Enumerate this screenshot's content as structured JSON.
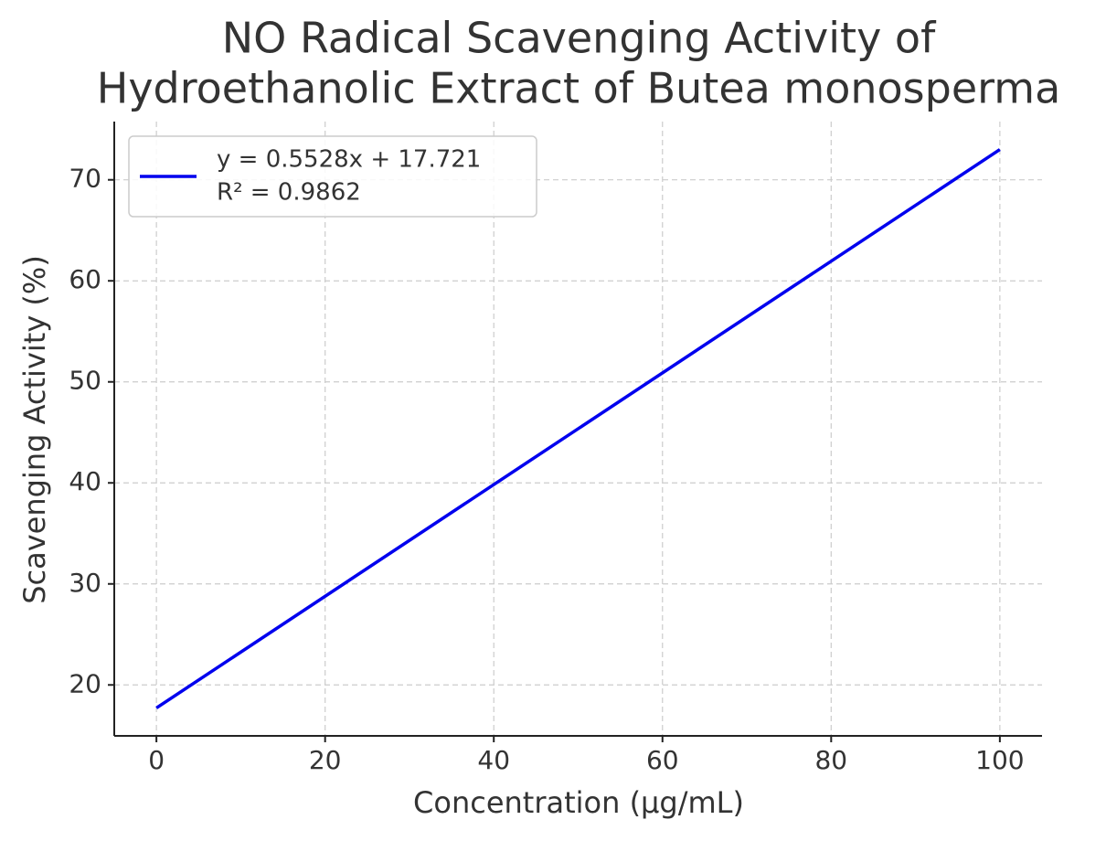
{
  "chart_data": {
    "type": "line",
    "title": [
      "NO Radical Scavenging Activity of",
      "Hydroethanolic Extract of Butea monosperma"
    ],
    "x_label": "Concentration (µg/mL)",
    "y_label": "Scavenging Activity (%)",
    "x": [
      0,
      100
    ],
    "series": [
      {
        "name": "y = 0.5528x + 17.721",
        "color": "#0000ee",
        "values": [
          17.721,
          73.001
        ]
      }
    ],
    "legend_note": "R² = 0.9862",
    "xlim": [
      -5,
      105
    ],
    "ylim": [
      14.957,
      75.765
    ],
    "xticks": [
      0,
      20,
      40,
      60,
      80,
      100
    ],
    "yticks": [
      20,
      30,
      40,
      50,
      60,
      70
    ],
    "grid": true,
    "legend": "upper left"
  }
}
